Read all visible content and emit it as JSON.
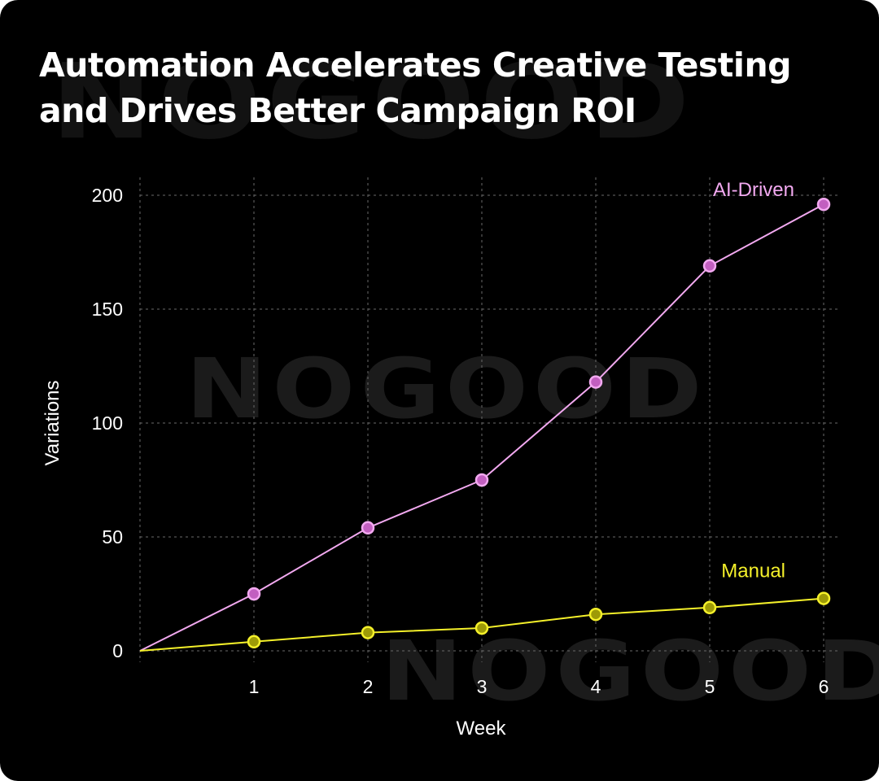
{
  "brand": {
    "watermark": "NOGOOD"
  },
  "header": {
    "title_line1": "Automation Accelerates Creative Testing",
    "title_line2": "and Drives Better Campaign ROI"
  },
  "chart_data": {
    "type": "line",
    "title": "Automation Accelerates Creative Testing and Drives Better Campaign ROI",
    "xlabel": "Week",
    "ylabel": "Variations",
    "x": [
      0,
      1,
      2,
      3,
      4,
      5,
      6
    ],
    "x_tick_labels": [
      "1",
      "2",
      "3",
      "4",
      "5",
      "6"
    ],
    "x_ticks": [
      1,
      2,
      3,
      4,
      5,
      6
    ],
    "y_ticks": [
      0,
      50,
      100,
      150,
      200
    ],
    "y_tick_labels": [
      "0",
      "50",
      "100",
      "150",
      "200"
    ],
    "xlim": [
      0,
      6
    ],
    "ylim": [
      0,
      200
    ],
    "grid": true,
    "series": [
      {
        "name": "AI-Driven",
        "label": "AI-Driven",
        "color": "#f2a9f0",
        "marker_fill": "#c25fc0",
        "values": [
          0,
          25,
          54,
          75,
          118,
          169,
          196
        ]
      },
      {
        "name": "Manual",
        "label": "Manual",
        "color": "#f4f02a",
        "marker_fill": "#9d9a07",
        "values": [
          0,
          4,
          8,
          10,
          16,
          19,
          23
        ]
      }
    ]
  }
}
